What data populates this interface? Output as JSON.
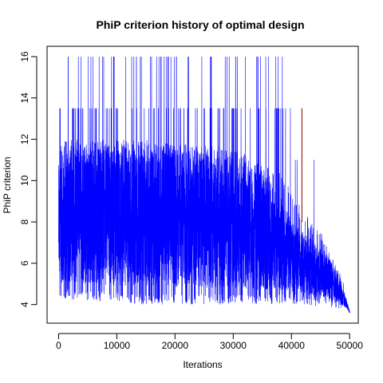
{
  "chart_data": {
    "type": "line",
    "title": "PhiP criterion history of optimal design",
    "xlabel": "Iterations",
    "ylabel": "PhiP criterion",
    "xlim": [
      -1980,
      51480
    ],
    "ylim": [
      3.1,
      16.5
    ],
    "x_ticks": [
      0,
      10000,
      20000,
      30000,
      40000,
      50000
    ],
    "y_ticks": [
      4,
      6,
      8,
      10,
      12,
      14,
      16
    ],
    "series_color": "#0000ff",
    "spike_color": "#8b0000",
    "grid": false,
    "legend": "none",
    "iterations": [
      0,
      50000
    ],
    "envelope": [
      {
        "x": 0,
        "lower": 4.3,
        "upper": 12.0,
        "typ_low": 5.0,
        "typ_high": 11.5
      },
      {
        "x": 5000,
        "lower": 4.2,
        "upper": 12.0,
        "typ_low": 5.0,
        "typ_high": 11.6
      },
      {
        "x": 10000,
        "lower": 4.1,
        "upper": 12.0,
        "typ_low": 4.9,
        "typ_high": 11.6
      },
      {
        "x": 15000,
        "lower": 4.0,
        "upper": 12.0,
        "typ_low": 4.9,
        "typ_high": 11.6
      },
      {
        "x": 20000,
        "lower": 4.0,
        "upper": 11.8,
        "typ_low": 4.8,
        "typ_high": 11.5
      },
      {
        "x": 25000,
        "lower": 4.0,
        "upper": 11.8,
        "typ_low": 4.8,
        "typ_high": 11.3
      },
      {
        "x": 30000,
        "lower": 4.0,
        "upper": 11.5,
        "typ_low": 4.8,
        "typ_high": 11.0
      },
      {
        "x": 35000,
        "lower": 4.0,
        "upper": 11.0,
        "typ_low": 4.7,
        "typ_high": 10.5
      },
      {
        "x": 38000,
        "lower": 4.0,
        "upper": 10.5,
        "typ_low": 4.7,
        "typ_high": 9.5
      },
      {
        "x": 40000,
        "lower": 4.0,
        "upper": 9.5,
        "typ_low": 4.6,
        "typ_high": 8.0
      },
      {
        "x": 42000,
        "lower": 4.0,
        "upper": 8.5,
        "typ_low": 4.5,
        "typ_high": 7.5
      },
      {
        "x": 45000,
        "lower": 3.9,
        "upper": 7.5,
        "typ_low": 4.4,
        "typ_high": 6.8
      },
      {
        "x": 47000,
        "lower": 3.8,
        "upper": 6.5,
        "typ_low": 4.2,
        "typ_high": 6.0
      },
      {
        "x": 48500,
        "lower": 3.8,
        "upper": 5.5,
        "typ_low": 4.0,
        "typ_high": 5.0
      },
      {
        "x": 49500,
        "lower": 3.7,
        "upper": 4.5,
        "typ_low": 3.8,
        "typ_high": 4.2
      },
      {
        "x": 50000,
        "lower": 3.6,
        "upper": 3.8,
        "typ_low": 3.6,
        "typ_high": 3.7
      }
    ],
    "spike_levels": [
      13.5,
      16.0
    ],
    "spike_region": [
      0,
      40000
    ],
    "dark_spike": {
      "x": 41800,
      "y": 13.5
    }
  }
}
